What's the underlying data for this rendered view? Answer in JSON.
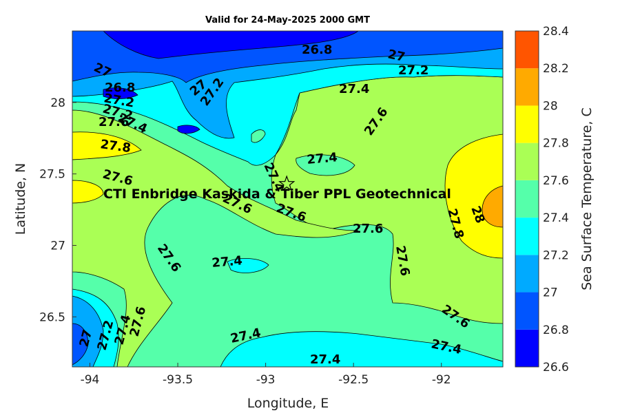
{
  "title": "Valid for 24-May-2025 2000 GMT",
  "x_axis": {
    "label": "Longitude, E",
    "ticks": [
      "-94",
      "-93.5",
      "-93",
      "-92.5",
      "-92"
    ]
  },
  "y_axis": {
    "label": "Latitude, N",
    "ticks": [
      "28",
      "27.5",
      "27",
      "26.5"
    ]
  },
  "colorbar": {
    "label": "Sea Surface Temperature, C",
    "ticks": [
      "28.4",
      "28.2",
      "28",
      "27.8",
      "27.6",
      "27.4",
      "27.2",
      "27",
      "26.8",
      "26.6"
    ],
    "colors": [
      "#0000ff",
      "#0055ff",
      "#00aaff",
      "#00ffff",
      "#55ffaa",
      "#aaff55",
      "#ffff00",
      "#ffaa00",
      "#ff5500"
    ]
  },
  "annotation": "CTI Enbridge  Kaskida & Tiber PPL Geotechnical",
  "site_marker": {
    "name": "star-icon",
    "lon": -92.88,
    "lat": 27.43
  },
  "contour_labels": [
    "26.8",
    "27",
    "27.2",
    "27",
    "27.4",
    "27.2",
    "27",
    "26.8",
    "27.2",
    "27.2",
    "27.4",
    "27.6",
    "27.6",
    "27.8",
    "27.6",
    "27.4",
    "27.4",
    "27.6",
    "27.6",
    "27.6",
    "28",
    "27.8",
    "27.6",
    "27.4",
    "27.6",
    "27.6",
    "27.4",
    "27.2",
    "27",
    "27.6",
    "27.4",
    "27.4",
    "27.4"
  ],
  "colors": {
    "background": "#ffffff",
    "contour_line": "#000000"
  }
}
